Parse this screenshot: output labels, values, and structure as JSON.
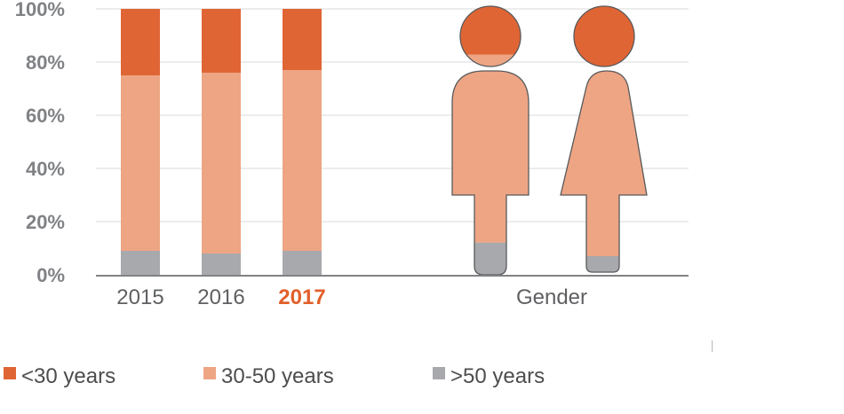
{
  "colors": {
    "under_30": "#e06535",
    "30_50": "#eda584",
    "over_50": "#a7a9ac",
    "grid": "#d9d9d9",
    "axis": "#808285",
    "highlight": "#e25f2a",
    "tick_text": "#808285",
    "figure_outline": "#58595b"
  },
  "chart_data": [
    {
      "type": "bar",
      "stacked": true,
      "categories": [
        "2015",
        "2016",
        "2017"
      ],
      "highlight_category": "2017",
      "ylim": [
        0,
        100
      ],
      "yticks": [
        "0%",
        "20%",
        "40%",
        "60%",
        "80%",
        "100%"
      ],
      "grid": true,
      "series": [
        {
          "name": ">50 years",
          "key": "over_50",
          "values": [
            9,
            8,
            9
          ]
        },
        {
          "name": "30-50 years",
          "key": "30_50",
          "values": [
            66,
            68,
            68
          ]
        },
        {
          "name": "<30 years",
          "key": "under_30",
          "values": [
            25,
            24,
            23
          ]
        }
      ]
    },
    {
      "type": "pictogram",
      "category_label": "Gender",
      "figures": [
        {
          "icon": "male-figure-icon",
          "over_50": 12,
          "30_50": 70,
          "under_30": 18
        },
        {
          "icon": "female-figure-icon",
          "over_50": 6,
          "30_50": 70,
          "under_30": 24
        }
      ]
    }
  ],
  "legend": {
    "placement": "bottom",
    "items": [
      {
        "label": "<30 years",
        "key": "under_30"
      },
      {
        "label": "30-50 years",
        "key": "30_50"
      },
      {
        "label": ">50 years",
        "key": "over_50"
      }
    ]
  }
}
